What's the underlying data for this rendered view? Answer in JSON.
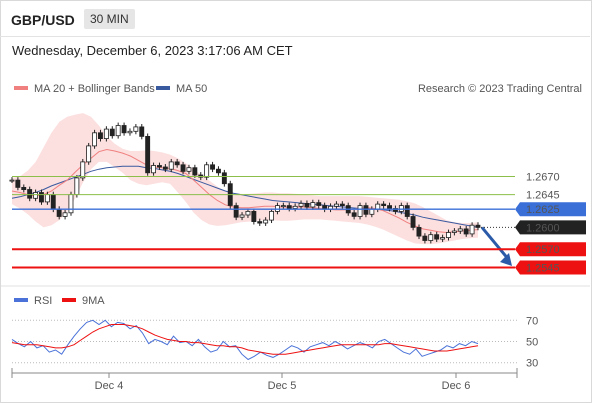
{
  "header": {
    "pair": "GBP/USD",
    "timeframe": "30 MIN",
    "datetime": "Wednesday, December 6, 2023 3:17:06 AM CET"
  },
  "legend": {
    "ma20": "MA 20 + Bollinger Bands",
    "ma50": "MA 50",
    "credit": "Research © 2023 Trading Central"
  },
  "rsi_legend": {
    "rsi": "RSI",
    "ma9": "9MA"
  },
  "colors": {
    "ma20": "#f08080",
    "bollinger": "#fbd4d4",
    "ma50": "#3a5aa0",
    "resistance": "#8bbf4a",
    "pivot": "#3a6fd8",
    "support": "#ee1111",
    "price": "#222222",
    "rsi": "#4a72d8",
    "rsi_ma": "#ee1111"
  },
  "chart_data": {
    "type": "line",
    "x_ticks": [
      "Dec 4",
      "Dec 5",
      "Dec 6"
    ],
    "ylim": [
      1.2525,
      1.2775
    ],
    "levels": [
      {
        "value": 1.267,
        "label": "1.2670",
        "kind": "resistance"
      },
      {
        "value": 1.2645,
        "label": "1.2645",
        "kind": "resistance"
      },
      {
        "value": 1.2625,
        "label": "1.2625",
        "kind": "pivot"
      },
      {
        "value": 1.26,
        "label": "1.2600",
        "kind": "last"
      },
      {
        "value": 1.257,
        "label": "1.2570",
        "kind": "support"
      },
      {
        "value": 1.2545,
        "label": "1.2545",
        "kind": "support"
      }
    ],
    "price": [
      1.2665,
      1.2655,
      1.2652,
      1.264,
      1.2648,
      1.2635,
      1.2645,
      1.2625,
      1.2615,
      1.262,
      1.2645,
      1.2668,
      1.269,
      1.2712,
      1.273,
      1.2722,
      1.2735,
      1.2726,
      1.274,
      1.273,
      1.2732,
      1.2738,
      1.2725,
      1.2675,
      1.2685,
      1.2683,
      1.268,
      1.269,
      1.2686,
      1.2677,
      1.2682,
      1.2672,
      1.2669,
      1.2686,
      1.268,
      1.2675,
      1.266,
      1.263,
      1.2614,
      1.2617,
      1.2622,
      1.2608,
      1.2606,
      1.261,
      1.2622,
      1.263,
      1.263,
      1.2626,
      1.2629,
      1.2633,
      1.2628,
      1.2634,
      1.263,
      1.2625,
      1.2629,
      1.2632,
      1.263,
      1.262,
      1.2615,
      1.263,
      1.2618,
      1.2625,
      1.2632,
      1.263,
      1.2626,
      1.2622,
      1.263,
      1.2615,
      1.26,
      1.2588,
      1.2582,
      1.259,
      1.2584,
      1.2586,
      1.2593,
      1.2595,
      1.2598,
      1.2591,
      1.2603,
      1.26
    ],
    "ma20": [
      1.265,
      1.2648,
      1.2645,
      1.2643,
      1.2645,
      1.265,
      1.2658,
      1.2665,
      1.2676,
      1.2686,
      1.2695,
      1.2704,
      1.2707,
      1.2705,
      1.2702,
      1.2698,
      1.2692,
      1.2686,
      1.2683,
      1.2682,
      1.2681,
      1.2678,
      1.2674,
      1.2665,
      1.2655,
      1.2645,
      1.2637,
      1.2631,
      1.2628,
      1.2627,
      1.2627,
      1.2628,
      1.2629,
      1.2629,
      1.2628,
      1.2628,
      1.2628,
      1.2628,
      1.2627,
      1.2626,
      1.2625,
      1.2624,
      1.2624,
      1.2625,
      1.2626,
      1.2627,
      1.2626,
      1.2623,
      1.2618,
      1.2613,
      1.2607,
      1.2602,
      1.2598,
      1.2596,
      1.2594,
      1.2593,
      1.2594,
      1.2595,
      1.2596,
      1.2597
    ],
    "bb_upper": [
      1.2668,
      1.267,
      1.2678,
      1.269,
      1.271,
      1.273,
      1.2745,
      1.2752,
      1.2755,
      1.2757,
      1.2752,
      1.274,
      1.2725,
      1.2715,
      1.2708,
      1.2705,
      1.2705,
      1.2706,
      1.2705,
      1.2703,
      1.27,
      1.2695,
      1.2688,
      1.268,
      1.2672,
      1.2664,
      1.2656,
      1.265,
      1.2647,
      1.2646,
      1.2646,
      1.2647,
      1.2648,
      1.2648,
      1.2647,
      1.2647,
      1.2646,
      1.2645,
      1.2644,
      1.2643,
      1.2643,
      1.2643,
      1.2643,
      1.2643,
      1.2643,
      1.2642,
      1.2641,
      1.264,
      1.2639,
      1.2638,
      1.2636,
      1.2633,
      1.2628,
      1.2622,
      1.2616,
      1.261,
      1.2607,
      1.2606,
      1.2606,
      1.2607
    ],
    "bb_lower": [
      1.2632,
      1.2626,
      1.2618,
      1.2608,
      1.26,
      1.2603,
      1.261,
      1.2622,
      1.264,
      1.2662,
      1.268,
      1.269,
      1.269,
      1.2683,
      1.2675,
      1.2665,
      1.266,
      1.2658,
      1.266,
      1.2662,
      1.266,
      1.2648,
      1.2635,
      1.262,
      1.261,
      1.2604,
      1.2602,
      1.2603,
      1.2605,
      1.2607,
      1.2608,
      1.2609,
      1.261,
      1.261,
      1.2609,
      1.2609,
      1.261,
      1.2611,
      1.2611,
      1.2611,
      1.261,
      1.2609,
      1.2608,
      1.2607,
      1.2606,
      1.2604,
      1.2601,
      1.2597,
      1.2592,
      1.2587,
      1.2582,
      1.2578,
      1.2577,
      1.2577,
      1.2578,
      1.258,
      1.2582,
      1.2584,
      1.2585,
      1.2586
    ],
    "ma50": [
      1.264,
      1.2642,
      1.2645,
      1.2648,
      1.2652,
      1.2657,
      1.2661,
      1.2665,
      1.2669,
      1.2673,
      1.2677,
      1.268,
      1.2682,
      1.2683,
      1.2684,
      1.2684,
      1.2684,
      1.2682,
      1.2681,
      1.2679,
      1.2677,
      1.2674,
      1.267,
      1.2666,
      1.2662,
      1.2658,
      1.2654,
      1.265,
      1.2647,
      1.2645,
      1.2643,
      1.2641,
      1.2639,
      1.2637,
      1.2636,
      1.2635,
      1.2634,
      1.2633,
      1.2632,
      1.2631,
      1.263,
      1.2629,
      1.2628,
      1.2627,
      1.2626,
      1.2626,
      1.2625,
      1.2624,
      1.2623,
      1.2621,
      1.2619,
      1.2617,
      1.2614,
      1.2612,
      1.261,
      1.2608,
      1.2606,
      1.2604,
      1.2602,
      1.26
    ],
    "rsi": {
      "ylim": [
        25,
        75
      ],
      "ticks": [
        70,
        50,
        30
      ],
      "rsi_values": [
        52,
        48,
        45,
        50,
        44,
        46,
        40,
        42,
        38,
        47,
        55,
        62,
        68,
        70,
        66,
        70,
        64,
        68,
        67,
        62,
        65,
        58,
        48,
        52,
        50,
        47,
        55,
        49,
        50,
        46,
        52,
        45,
        40,
        42,
        50,
        45,
        46,
        38,
        33,
        36,
        40,
        37,
        35,
        38,
        42,
        46,
        44,
        40,
        45,
        47,
        49,
        46,
        50,
        47,
        43,
        46,
        49,
        47,
        44,
        50,
        52,
        48,
        44,
        40,
        38,
        43,
        36,
        38,
        40,
        42,
        46,
        44,
        48,
        46,
        50,
        48
      ],
      "ma_values": [
        49,
        48,
        47,
        47,
        47,
        46,
        45,
        44,
        44,
        45,
        47,
        51,
        55,
        59,
        62,
        64,
        66,
        66,
        66,
        65,
        64,
        62,
        59,
        56,
        54,
        52,
        51,
        50,
        50,
        49,
        49,
        48,
        47,
        46,
        46,
        45,
        45,
        44,
        42,
        41,
        40,
        39,
        38,
        38,
        38,
        39,
        40,
        41,
        42,
        43,
        44,
        45,
        46,
        47,
        47,
        47,
        47,
        47,
        47,
        47,
        48,
        48,
        47,
        46,
        45,
        44,
        43,
        42,
        41,
        41,
        41,
        42,
        43,
        44,
        45,
        46
      ]
    }
  }
}
